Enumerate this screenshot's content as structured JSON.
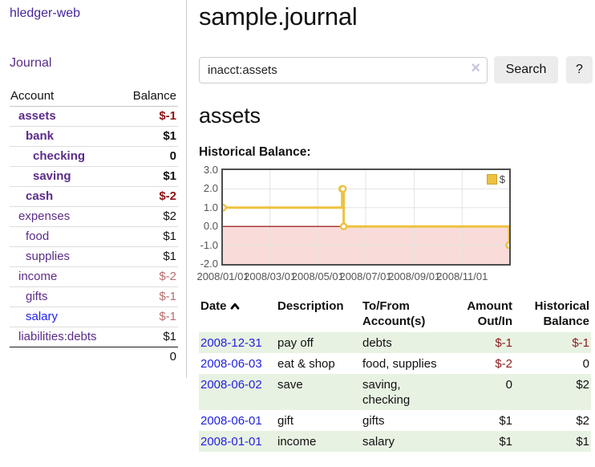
{
  "brand": {
    "label": "hledger-web"
  },
  "nav": {
    "journal": "Journal"
  },
  "sidebar": {
    "headers": {
      "account": "Account",
      "balance": "Balance"
    },
    "accounts": [
      {
        "name": "assets",
        "balance": "$-1",
        "indent": 1,
        "bold": true,
        "balance_style": "neg-strong",
        "name_style": "purple"
      },
      {
        "name": "bank",
        "balance": "$1",
        "indent": 2,
        "bold": true,
        "balance_style": "normal",
        "name_style": "purple"
      },
      {
        "name": "checking",
        "balance": "0",
        "indent": 3,
        "bold": true,
        "balance_style": "normal",
        "name_style": "purple"
      },
      {
        "name": "saving",
        "balance": "$1",
        "indent": 3,
        "bold": true,
        "balance_style": "normal",
        "name_style": "purple"
      },
      {
        "name": "cash",
        "balance": "$-2",
        "indent": 2,
        "bold": true,
        "balance_style": "neg-strong",
        "name_style": "purple"
      },
      {
        "name": "expenses",
        "balance": "$2",
        "indent": 1,
        "bold": false,
        "balance_style": "normal",
        "name_style": "purple"
      },
      {
        "name": "food",
        "balance": "$1",
        "indent": 2,
        "bold": false,
        "balance_style": "normal",
        "name_style": "purple"
      },
      {
        "name": "supplies",
        "balance": "$1",
        "indent": 2,
        "bold": false,
        "balance_style": "normal",
        "name_style": "purple"
      },
      {
        "name": "income",
        "balance": "$-2",
        "indent": 1,
        "bold": false,
        "balance_style": "neg-soft",
        "name_style": "purple"
      },
      {
        "name": "gifts",
        "balance": "$-1",
        "indent": 2,
        "bold": false,
        "balance_style": "neg-soft",
        "name_style": "purple"
      },
      {
        "name": "salary",
        "balance": "$-1",
        "indent": 2,
        "bold": false,
        "balance_style": "neg-soft",
        "name_style": "blue"
      },
      {
        "name": "liabilities:debts",
        "balance": "$1",
        "indent": 1,
        "bold": false,
        "balance_style": "normal",
        "name_style": "purple"
      }
    ],
    "total": "0"
  },
  "main": {
    "title": "sample.journal",
    "search": {
      "value": "inacct:assets",
      "clear": "×",
      "search_button": "Search",
      "help_button": "?"
    },
    "account_heading": "assets",
    "chart_heading": "Historical Balance:"
  },
  "chart_data": {
    "type": "line",
    "title": "Historical Balance:",
    "step": true,
    "series": [
      {
        "name": "$",
        "color": "#edc240",
        "points": [
          [
            "2008-01-01",
            1
          ],
          [
            "2008-06-01",
            2
          ],
          [
            "2008-06-02",
            2
          ],
          [
            "2008-06-03",
            0
          ],
          [
            "2008-12-31",
            -1
          ]
        ]
      }
    ],
    "xlim": [
      "2008-01-01",
      "2008-12-31"
    ],
    "ylim": [
      -2,
      3
    ],
    "x_ticks": [
      "2008/01/01",
      "2008/03/01",
      "2008/05/01",
      "2008/07/01",
      "2008/09/01",
      "2008/11/01"
    ],
    "y_ticks": [
      -2.0,
      -1.0,
      0.0,
      1.0,
      2.0,
      3.0
    ],
    "legend": [
      "$"
    ],
    "legend_position": "top-right",
    "grid": true,
    "grid_color": "#e3e3e3",
    "negative_region_color": "#f9dcda",
    "zero_line_color": "#8b0000",
    "marker_fill": "#ffffff",
    "plot_border_color": "#4d4d4d"
  },
  "register": {
    "headers": [
      "Date",
      "Description",
      "To/From Account(s)",
      "Amount Out/In",
      "Historical Balance"
    ],
    "rows": [
      {
        "date": "2008-12-31",
        "description": "pay off",
        "accounts": "debts",
        "amount": "$-1",
        "balance": "$-1",
        "amount_style": "neg",
        "balance_style": "neg"
      },
      {
        "date": "2008-06-03",
        "description": "eat & shop",
        "accounts": "food, supplies",
        "amount": "$-2",
        "balance": "0",
        "amount_style": "neg",
        "balance_style": "normal"
      },
      {
        "date": "2008-06-02",
        "description": "save",
        "accounts": "saving, checking",
        "amount": "0",
        "balance": "$2",
        "amount_style": "normal",
        "balance_style": "normal"
      },
      {
        "date": "2008-06-01",
        "description": "gift",
        "accounts": "gifts",
        "amount": "$1",
        "balance": "$2",
        "amount_style": "normal",
        "balance_style": "normal"
      },
      {
        "date": "2008-01-01",
        "description": "income",
        "accounts": "salary",
        "amount": "$1",
        "balance": "$1",
        "amount_style": "normal",
        "balance_style": "normal"
      }
    ]
  }
}
